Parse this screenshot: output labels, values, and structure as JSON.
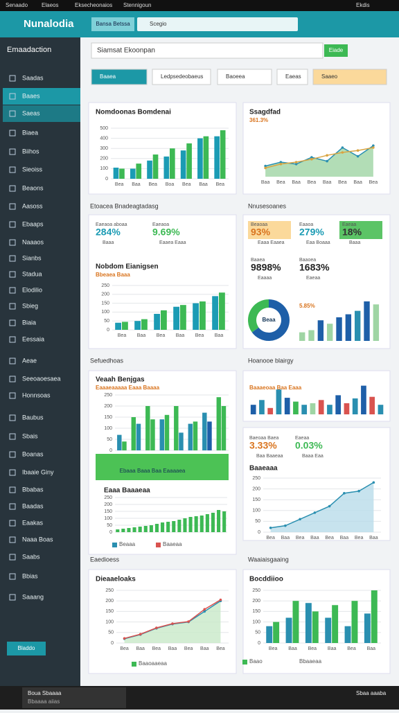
{
  "browser_bar": {
    "tabs": [
      "Senaado",
      "Elaeos",
      "Eksecheonaios",
      "Stennigoun"
    ],
    "user": "Ekdis"
  },
  "header": {
    "logo": "Nunalodia",
    "button": "Bansa Betssa",
    "search": "Scegio"
  },
  "sidebar": {
    "title": "Emaadaction",
    "items": [
      "Saadas",
      "Baaes",
      "Saeas",
      "Biaea",
      "Biihos",
      "Sieoiss",
      "Beaons",
      "Aasoss",
      "Ebaaps",
      "Naaaos",
      "Sianbs",
      "Stadua",
      "Elodilio",
      "Sbieg",
      "Biaia",
      "Eessaia",
      "Aeae",
      "Seeoaoesaea",
      "Honnsoas",
      "Baubus",
      "Sbais",
      "Boanas",
      "Ibaaie Giny",
      "Bbabas",
      "Baadas",
      "Eaakas",
      "Naaa Boas",
      "Saabs",
      "Bbias",
      "Saaang"
    ],
    "button": "Bladdo"
  },
  "toolbar": {
    "search": "Siamsat Ekoonpan",
    "go": "Eiade",
    "filters": [
      "Baaea",
      "Ledpsedeobaeus",
      "Baoeea",
      "Eaeas",
      "Saaeo"
    ]
  },
  "sections": [
    "Etoacea Bnadeagtadasg",
    "Nnusesoanes",
    "Sefuedhoas",
    "Hoanooe blairgy",
    "Eaedioess",
    "Waaiaisgaaing"
  ],
  "kpis": [
    {
      "label": "Eaeaoa aboaa",
      "value": "284%",
      "note": "Baaa"
    },
    {
      "label": "Eaeaoa",
      "value": "9.69%",
      "note": "Eaaea Eaaa"
    },
    {
      "label": "Beaoaa",
      "value": "93%",
      "note": "Eaaa Eaaea"
    },
    {
      "label": "Eaaoa",
      "value": "279%",
      "note": "Eaa Boaaa"
    },
    {
      "label": "Eaeaa",
      "value": "18%",
      "note": "Baaa"
    },
    {
      "label": "Baaea",
      "value": "9898%",
      "note": "Eaaaa"
    },
    {
      "label": "Baaoea",
      "value": "1683%",
      "note": "Eaeaa"
    },
    {
      "label": "Baeoaa Baea",
      "value": "3.33%",
      "note": "Baa Baaeaa"
    },
    {
      "label": "Eaeaa",
      "value": "0.03%",
      "note": "Baaa Eaa"
    }
  ],
  "banner": "Ebaaa Baaa Baa Eaaaaea",
  "charts": [
    {
      "type": "bar",
      "title": "Nomdoonas Bomdenai",
      "categories": [
        "Bea",
        "Baa",
        "Bea",
        "Boa",
        "Bea",
        "Baa",
        "Bea"
      ],
      "ylim": [
        0,
        500
      ],
      "yticks": [
        0,
        100,
        200,
        300,
        400,
        500
      ],
      "series": [
        {
          "color": "#1b9bb4",
          "values": [
            110,
            100,
            180,
            220,
            280,
            400,
            420
          ]
        },
        {
          "color": "#3db954",
          "values": [
            100,
            150,
            240,
            300,
            350,
            420,
            480
          ]
        }
      ]
    },
    {
      "type": "line",
      "title": "Ssagdfad",
      "subtitle": "361.3%",
      "categories": [
        "Baa",
        "Bea",
        "Baa",
        "Bea",
        "Baa",
        "Bea",
        "Baa",
        "Bea"
      ],
      "ylim": [
        0,
        100
      ],
      "series": [
        {
          "color": "#2a8fb0",
          "area": "#9fd5a4",
          "values": [
            22,
            30,
            26,
            40,
            32,
            60,
            42,
            64
          ]
        },
        {
          "color": "#d9a441",
          "values": [
            18,
            26,
            30,
            36,
            44,
            50,
            54,
            60
          ]
        }
      ]
    },
    {
      "type": "bar",
      "title": "Nobdom Eianigsen",
      "subtitle": "Bbeaea Baaa",
      "categories": [
        "Bea",
        "Baa",
        "Bea",
        "Baa",
        "Bea",
        "Baa"
      ],
      "ylim": [
        0,
        250
      ],
      "yticks": [
        0,
        50,
        100,
        150,
        200,
        250
      ],
      "series": [
        {
          "color": "#1b9bb4",
          "values": [
            40,
            50,
            90,
            130,
            150,
            190
          ]
        },
        {
          "color": "#3db954",
          "values": [
            45,
            60,
            110,
            140,
            160,
            210
          ]
        }
      ]
    },
    {
      "type": "donut",
      "center_label": "Beaa",
      "values": [
        65,
        35
      ],
      "colors": [
        "#1e5fa8",
        "#3db954"
      ]
    },
    {
      "type": "bar",
      "subtitle": "5.85%",
      "ylim": [
        0,
        100
      ],
      "series": [
        {
          "colors": [
            "#9fd5a4",
            "#9fd5a4",
            "#1e5fa8",
            "#9fd5a4",
            "#1e5fa8",
            "#1e5fa8",
            "#2a8fb0",
            "#1e5fa8",
            "#9fd5a4"
          ],
          "values": [
            20,
            25,
            48,
            40,
            55,
            62,
            70,
            92,
            85
          ]
        }
      ]
    },
    {
      "type": "bar",
      "title": "Veaah Benjgas",
      "subtitle": "Eaaaeaaaaa Eaaa Baaaa",
      "ylim": [
        0,
        250
      ],
      "yticks": [
        0,
        50,
        100,
        150,
        200,
        250
      ],
      "series": [
        {
          "colors": [
            "#2a8fb0",
            "#3db954",
            "#3db954",
            "#2a8fb0",
            "#3db954",
            "#2a8fb0",
            "#2a8fb0",
            "#3db954"
          ],
          "values": [
            70,
            150,
            200,
            140,
            200,
            120,
            170,
            240
          ]
        },
        {
          "colors": [
            "#3db954",
            "#2a8fb0",
            "#3db954",
            "#3db954",
            "#2a8fb0",
            "#3db954",
            "#1e5fa8",
            "#3db954"
          ],
          "values": [
            40,
            120,
            140,
            160,
            80,
            130,
            130,
            200
          ]
        }
      ]
    },
    {
      "type": "bar",
      "title": "Eaaa Baaaeaa",
      "ylim": [
        0,
        250
      ],
      "yticks": [
        0,
        50,
        100,
        150,
        200,
        250
      ],
      "series": [
        {
          "color": "#3db954",
          "values": [
            20,
            25,
            30,
            35,
            40,
            45,
            50,
            60,
            70,
            75,
            80,
            90,
            100,
            110,
            115,
            120,
            130,
            140,
            160,
            150
          ]
        }
      ]
    },
    {
      "type": "bar",
      "subtitle": "Baaaeoaa Baa Eaaa",
      "ylim": [
        0,
        100
      ],
      "series": [
        {
          "colors": [
            "#1e5fa8",
            "#2a8fb0",
            "#d9534f",
            "#2a8fb0",
            "#1e5fa8",
            "#3db954",
            "#2a8fb0",
            "#9fd5a4",
            "#d9534f",
            "#2a8fb0",
            "#1e5fa8",
            "#d9534f",
            "#2a8fb0",
            "#1e5fa8",
            "#d9534f",
            "#2a8fb0"
          ],
          "values": [
            30,
            45,
            20,
            78,
            52,
            40,
            30,
            35,
            45,
            30,
            60,
            35,
            50,
            90,
            55,
            30
          ]
        }
      ]
    },
    {
      "type": "line",
      "title": "Baaeaaa",
      "categories": [
        "Bea",
        "Baa",
        "Bea",
        "Baa",
        "Bea",
        "Baa",
        "Bea",
        "Baa"
      ],
      "ylim": [
        0,
        250
      ],
      "yticks": [
        0,
        50,
        100,
        150,
        200,
        250
      ],
      "series": [
        {
          "color": "#2a8fb0",
          "area": "#b9dcea",
          "values": [
            20,
            30,
            60,
            90,
            120,
            180,
            190,
            230
          ]
        }
      ]
    },
    {
      "type": "line",
      "title": "Dieaaeloaks",
      "categories": [
        "Bea",
        "Baa",
        "Bea",
        "Baa",
        "Bea",
        "Baa",
        "Bea"
      ],
      "ylim": [
        0,
        250
      ],
      "yticks": [
        0,
        50,
        100,
        150,
        200,
        250
      ],
      "series": [
        {
          "color": "#2a8fb0",
          "area": "#c8e8c8",
          "values": [
            20,
            40,
            70,
            90,
            100,
            150,
            200
          ]
        },
        {
          "color": "#d9534f",
          "values": [
            22,
            42,
            72,
            92,
            102,
            160,
            205
          ]
        }
      ]
    },
    {
      "type": "bar",
      "title": "Bocddiioo",
      "categories": [
        "Bea",
        "Baa",
        "Bea",
        "Baa",
        "Bea",
        "Baa"
      ],
      "ylim": [
        0,
        250
      ],
      "yticks": [
        0,
        50,
        100,
        150,
        200,
        250
      ],
      "series": [
        {
          "color": "#2a8fb0",
          "values": [
            80,
            120,
            190,
            120,
            80,
            140
          ]
        },
        {
          "color": "#3db954",
          "values": [
            100,
            200,
            150,
            180,
            200,
            250
          ]
        }
      ]
    }
  ],
  "legends": [
    [
      "Beaaa",
      "Baaeaa"
    ],
    [
      "Baaoaaeaa"
    ],
    [
      "Baao",
      "Bbaaeaa"
    ]
  ],
  "taskbar": {
    "app": "Boua Sbaaaa",
    "sub": "Bbaaaa aiias",
    "clock": "Sbaa aaaba"
  }
}
